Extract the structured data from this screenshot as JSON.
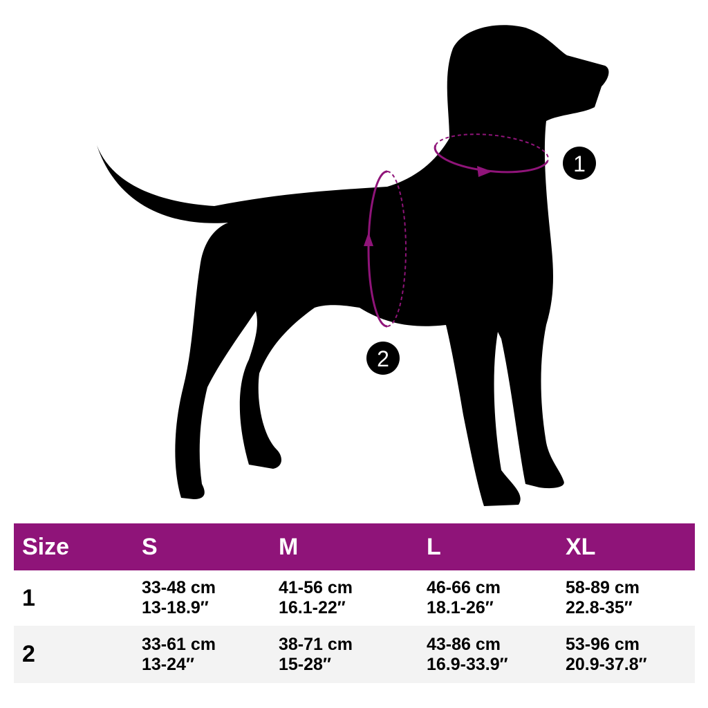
{
  "colors": {
    "accent": "#8f1479",
    "silhouette": "#000000",
    "row_alt": "#f3f3f3"
  },
  "markers": [
    "1",
    "2"
  ],
  "table": {
    "header": [
      "Size",
      "S",
      "M",
      "L",
      "XL"
    ],
    "rows": [
      {
        "label": "1",
        "cells": [
          [
            "33-48 cm",
            "13-18.9″"
          ],
          [
            "41-56 cm",
            "16.1-22″"
          ],
          [
            "46-66 cm",
            "18.1-26″"
          ],
          [
            "58-89 cm",
            "22.8-35″"
          ]
        ]
      },
      {
        "label": "2",
        "cells": [
          [
            "33-61 cm",
            "13-24″"
          ],
          [
            "38-71 cm",
            "15-28″"
          ],
          [
            "43-86 cm",
            "16.9-33.9″"
          ],
          [
            "53-96 cm",
            "20.9-37.8″"
          ]
        ]
      }
    ]
  }
}
